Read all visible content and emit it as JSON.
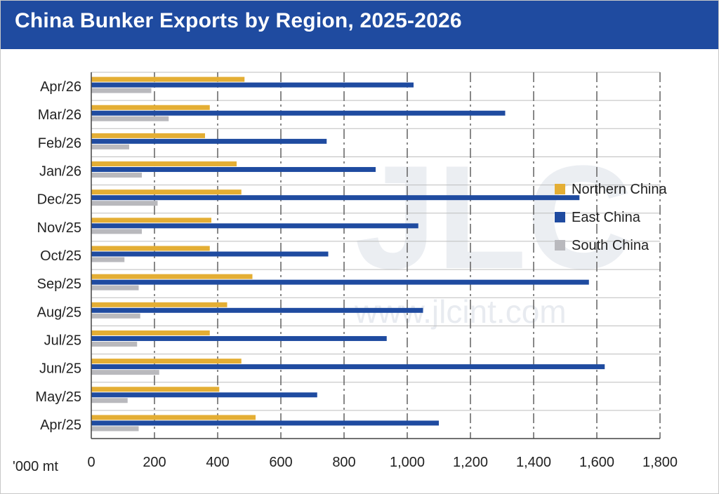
{
  "header": {
    "title": "China Bunker Exports by Region, 2025-2026"
  },
  "watermark": {
    "logo_text": "JLC",
    "url_text": "www.jlcint.com"
  },
  "colors": {
    "title_bg": "#1f4ba0",
    "northern": "#e4ae34",
    "east": "#1f4ba0",
    "south": "#b9b9bd"
  },
  "chart_data": {
    "type": "bar",
    "orientation": "horizontal",
    "title": "China Bunker Exports by Region, 2025-2026",
    "xlabel": "'000 mt",
    "ylabel": "",
    "xlim": [
      0,
      1800
    ],
    "x_ticks": [
      0,
      200,
      400,
      600,
      800,
      1000,
      1200,
      1400,
      1600,
      1800
    ],
    "x_tick_labels": [
      "0",
      "200",
      "400",
      "600",
      "800",
      "1,000",
      "1,200",
      "1,400",
      "1,600",
      "1,800"
    ],
    "grid": "dashed vertical, solid horizontal",
    "legend_position": "right",
    "categories": [
      "Apr/26",
      "Mar/26",
      "Feb/26",
      "Jan/26",
      "Dec/25",
      "Nov/25",
      "Oct/25",
      "Sep/25",
      "Aug/25",
      "Jul/25",
      "Jun/25",
      "May/25",
      "Apr/25"
    ],
    "series": [
      {
        "name": "Northern China",
        "color": "#e4ae34",
        "values": [
          485,
          375,
          360,
          460,
          475,
          380,
          375,
          510,
          430,
          375,
          475,
          405,
          520
        ]
      },
      {
        "name": "East China",
        "color": "#1f4ba0",
        "values": [
          1020,
          1310,
          745,
          900,
          1545,
          1035,
          750,
          1575,
          1050,
          935,
          1625,
          715,
          1100
        ]
      },
      {
        "name": "South China",
        "color": "#b9b9bd",
        "values": [
          190,
          245,
          120,
          160,
          210,
          160,
          105,
          150,
          155,
          145,
          215,
          115,
          150
        ]
      }
    ]
  }
}
